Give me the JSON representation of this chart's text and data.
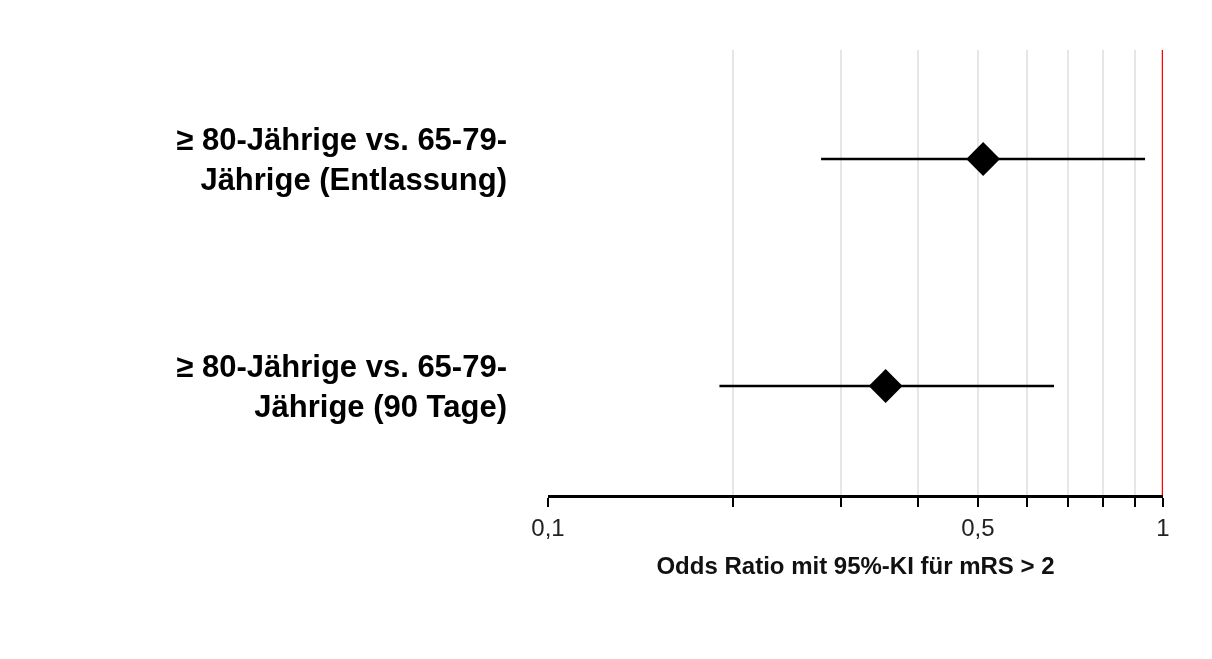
{
  "chart_data": {
    "type": "scatter",
    "orientation": "horizontal",
    "categories": [
      "≥ 80-Jährige vs. 65-79-Jährige (Entlassung)",
      "≥ 80-Jährige vs. 65-79-Jährige (90 Tage)"
    ],
    "values": [
      0.51,
      0.354
    ],
    "errors": [
      [
        0.278,
        0.935
      ],
      [
        0.19,
        0.665
      ]
    ],
    "color": "#000000",
    "marker": "diamond",
    "xlim": [
      0.1,
      1
    ],
    "xticks": [
      {
        "value": 0.1,
        "label": "0,1"
      },
      {
        "value": 0.2,
        "label": null
      },
      {
        "value": 0.3,
        "label": null
      },
      {
        "value": 0.4,
        "label": null
      },
      {
        "value": 0.5,
        "label": "0,5"
      },
      {
        "value": 0.6,
        "label": null
      },
      {
        "value": 0.7,
        "label": null
      },
      {
        "value": 0.8,
        "label": null
      },
      {
        "value": 0.9,
        "label": null
      },
      {
        "value": 1,
        "label": "1"
      }
    ],
    "log": "x",
    "grid": "x",
    "legend": false,
    "xlabel": "Odds Ratio mit 95%-KI für mRS > 2",
    "ref_lines": [
      {
        "axis": "x",
        "value": 1,
        "color": "#ff0000"
      }
    ]
  }
}
